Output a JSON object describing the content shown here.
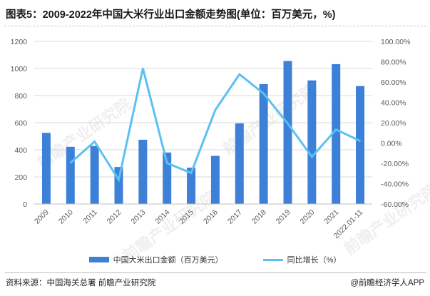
{
  "title": "图表5：2009-2022年中国大米行业出口金额走势图(单位：百万美元，%)",
  "source": "资料来源：中国海关总署 前瞻产业研究院",
  "brand": "@前瞻经济学人APP",
  "watermark": "前瞻产业研究院",
  "colors": {
    "bar": "#3c80d8",
    "line": "#5bc1f1",
    "axis": "#bfbfbf",
    "grid": "#d9d9d9",
    "text": "#595959"
  },
  "chart_data": {
    "type": "bar",
    "categories": [
      "2009",
      "2010",
      "2011",
      "2012",
      "2013",
      "2014",
      "2015",
      "2016",
      "2017",
      "2018",
      "2019",
      "2020",
      "2021",
      "2022.01-11"
    ],
    "series": [
      {
        "name": "中国大米出口金额（百万美元）",
        "type": "bar",
        "axis": "left",
        "values": [
          525,
          422,
          428,
          273,
          474,
          380,
          268,
          355,
          595,
          885,
          1055,
          912,
          1032,
          870
        ]
      },
      {
        "name": "同比增长（%）",
        "type": "line",
        "axis": "right",
        "values": [
          null,
          -19.6,
          1.4,
          -36.2,
          73.6,
          -19.8,
          -29.5,
          32.5,
          67.6,
          48.7,
          19.2,
          -13.6,
          13.2,
          2.0
        ]
      }
    ],
    "y_left": {
      "min": 0,
      "max": 1200,
      "step": 200,
      "ticks": [
        "0",
        "200",
        "400",
        "600",
        "800",
        "1000",
        "1200"
      ]
    },
    "y_right": {
      "min": -60,
      "max": 100,
      "step": 20,
      "ticks": [
        "-60.00%",
        "-40.00%",
        "-20.00%",
        "0.00%",
        "20.00%",
        "40.00%",
        "60.00%",
        "80.00%",
        "100.00%"
      ]
    },
    "grid": true,
    "legend": {
      "position": "bottom",
      "labels": [
        "中国大米出口金额（百万美元）",
        "同比增长（%）"
      ]
    }
  }
}
